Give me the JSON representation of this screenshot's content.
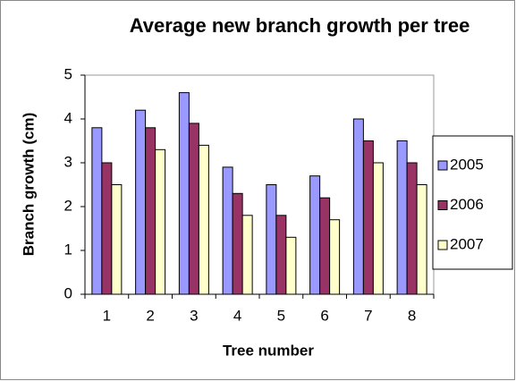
{
  "chart_data": {
    "type": "bar",
    "title": "Average new branch growth per tree",
    "x_label": "Tree number",
    "y_label": "Branch growth (cm)",
    "categories": [
      "1",
      "2",
      "3",
      "4",
      "5",
      "6",
      "7",
      "8"
    ],
    "series": [
      {
        "name": "2005",
        "color": "#9999ff",
        "values": [
          3.8,
          4.2,
          4.6,
          2.9,
          2.5,
          2.7,
          4.0,
          3.5
        ]
      },
      {
        "name": "2006",
        "color": "#993366",
        "values": [
          3.0,
          3.8,
          3.9,
          2.3,
          1.8,
          2.2,
          3.5,
          3.0
        ]
      },
      {
        "name": "2007",
        "color": "#ffffcc",
        "values": [
          2.5,
          3.3,
          3.4,
          1.8,
          1.3,
          1.7,
          3.0,
          2.5
        ]
      }
    ],
    "ylim": [
      0,
      5
    ],
    "yticks": [
      0,
      1,
      2,
      3,
      4,
      5
    ],
    "grid": false,
    "legend": "right"
  }
}
